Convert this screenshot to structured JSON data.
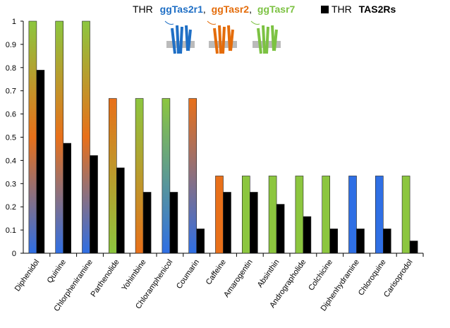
{
  "chart_data": {
    "type": "bar",
    "categories": [
      "Diphenidol",
      "Quinine",
      "Chlorpheniramine",
      "Parthenolide",
      "Yohimbine",
      "Chloramphenicol",
      "Coumarin",
      "Caffeine",
      "Amarogentin",
      "Absinthin",
      "Andrographolide",
      "Colchicine",
      "Diphenhydramine",
      "Chloroquine",
      "Carisoprodol"
    ],
    "legend_separator": ",",
    "series": [
      {
        "name": "THR",
        "receptors": [
          {
            "name": "ggTas2r1",
            "color": "#1f6fc5"
          },
          {
            "name": "ggTasr2",
            "color": "#e46c0a"
          },
          {
            "name": "ggTasr7",
            "color": "#7cc242"
          }
        ],
        "color_stops": [
          [
            "#8cc63f",
            "#e8701a",
            "#2f6fe4"
          ],
          [
            "#8cc63f",
            "#e8701a",
            "#2f6fe4"
          ],
          [
            "#8cc63f",
            "#e8701a",
            "#2f6fe4"
          ],
          [
            "#e8701a",
            "#8cc63f"
          ],
          [
            "#8cc63f",
            "#e8701a"
          ],
          [
            "#8cc63f",
            "#2f6fe4"
          ],
          [
            "#e8701a",
            "#2f6fe4"
          ],
          [
            "#e8701a"
          ],
          [
            "#8cc63f"
          ],
          [
            "#8cc63f"
          ],
          [
            "#8cc63f"
          ],
          [
            "#8cc63f"
          ],
          [
            "#2f6fe4"
          ],
          [
            "#2f6fe4"
          ],
          [
            "#8cc63f"
          ]
        ],
        "values": [
          1,
          1,
          1,
          0.667,
          0.667,
          0.667,
          0.667,
          0.333,
          0.333,
          0.333,
          0.333,
          0.333,
          0.333,
          0.333,
          0.333
        ]
      },
      {
        "name": "THR",
        "label": "TAS2Rs",
        "color": "#000000",
        "values": [
          0.789,
          0.474,
          0.421,
          0.368,
          0.263,
          0.263,
          0.105,
          0.263,
          0.263,
          0.211,
          0.158,
          0.105,
          0.105,
          0.105,
          0.053
        ]
      }
    ],
    "ylim": [
      0,
      1
    ],
    "yticks": [
      0,
      0.1,
      0.2,
      0.3,
      0.4,
      0.5,
      0.6,
      0.7,
      0.8,
      0.9,
      1
    ]
  }
}
